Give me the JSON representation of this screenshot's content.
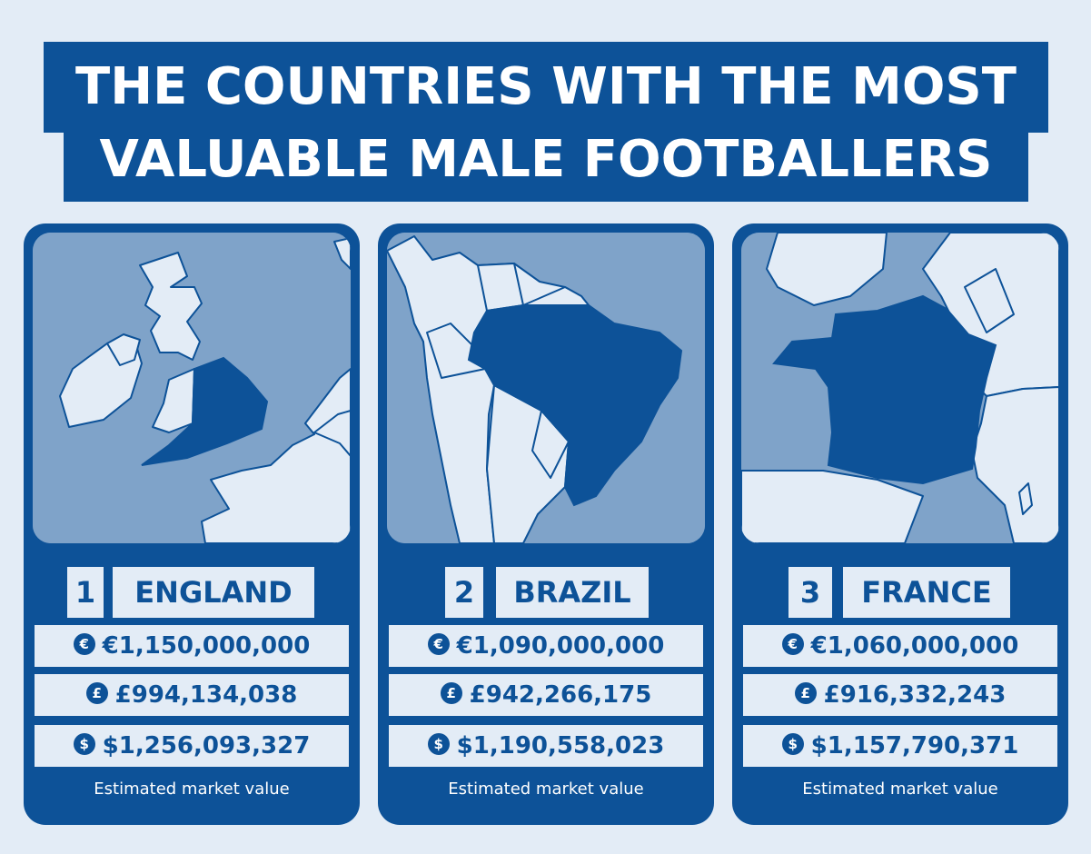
{
  "title": {
    "line1": "THE COUNTRIES WITH THE MOST",
    "line2": "VALUABLE MALE FOOTBALLERS"
  },
  "colors": {
    "accent": "#0d5298",
    "background": "#e3ecf6",
    "sea": "#7fa3c9",
    "land": "#e3ecf6"
  },
  "cards": [
    {
      "rank": "1",
      "country": "ENGLAND",
      "eur": "€1,150,000,000",
      "gbp": "£994,134,038",
      "usd": "$1,256,093,327",
      "caption": "Estimated market value"
    },
    {
      "rank": "2",
      "country": "BRAZIL",
      "eur": "€1,090,000,000",
      "gbp": "£942,266,175",
      "usd": "$1,190,558,023",
      "caption": "Estimated market value"
    },
    {
      "rank": "3",
      "country": "FRANCE",
      "eur": "€1,060,000,000",
      "gbp": "£916,332,243",
      "usd": "$1,157,790,371",
      "caption": "Estimated market value"
    }
  ],
  "icons": {
    "eur": "euro-icon",
    "gbp": "pound-icon",
    "usd": "dollar-icon"
  }
}
